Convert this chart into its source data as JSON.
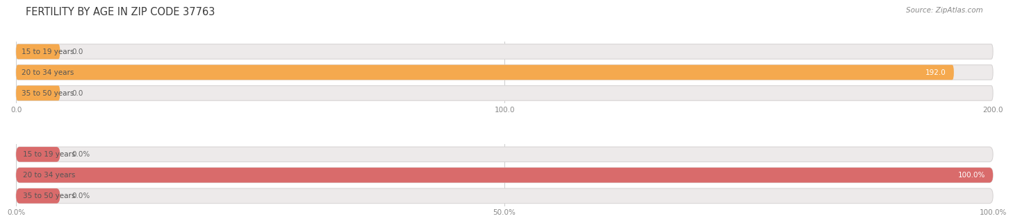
{
  "title": "FERTILITY BY AGE IN ZIP CODE 37763",
  "source": "Source: ZipAtlas.com",
  "top_chart": {
    "categories": [
      "15 to 19 years",
      "20 to 34 years",
      "35 to 50 years"
    ],
    "values": [
      0.0,
      192.0,
      0.0
    ],
    "max_val": 200.0,
    "bar_color": "#F5A94E",
    "bar_bg_color": "#EDEAEA",
    "label_color_inside": "#FFFFFF",
    "label_color_outside": "#666666",
    "cat_color": "#555555",
    "xticks": [
      0.0,
      100.0,
      200.0
    ],
    "xtick_labels": [
      "0.0",
      "100.0",
      "200.0"
    ]
  },
  "bottom_chart": {
    "categories": [
      "15 to 19 years",
      "20 to 34 years",
      "35 to 50 years"
    ],
    "values": [
      0.0,
      100.0,
      0.0
    ],
    "max_val": 100.0,
    "bar_color": "#D96B6B",
    "bar_bg_color": "#EDEAEA",
    "label_color_inside": "#FFFFFF",
    "label_color_outside": "#666666",
    "cat_color": "#555555",
    "xticks": [
      0.0,
      50.0,
      100.0
    ],
    "xtick_labels": [
      "0.0%",
      "50.0%",
      "100.0%"
    ]
  },
  "background_color": "#FFFFFF",
  "title_fontsize": 10.5,
  "source_fontsize": 7.5,
  "tick_fontsize": 7.5,
  "label_fontsize": 7.5,
  "category_fontsize": 7.5
}
